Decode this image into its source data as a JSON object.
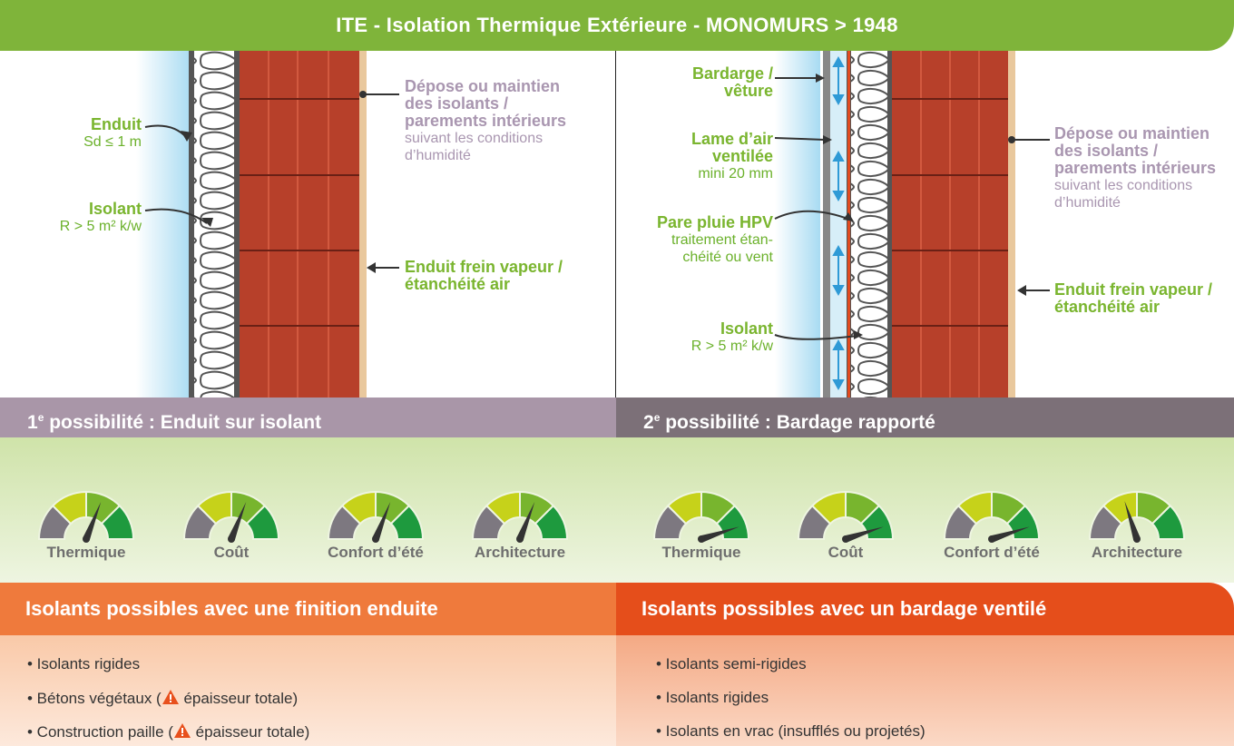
{
  "title": "ITE - Isolation Thermique Extérieure - MONOMURS > 1948",
  "left": {
    "enduit_title": "Enduit",
    "enduit_sub": "Sd ≤ 1 m",
    "isolant_title": "Isolant",
    "isolant_sub": "R > 5 m² k/w",
    "depose_l1": "Dépose ou maintien",
    "depose_l2": "des isolants /",
    "depose_l3": "parements intérieurs",
    "depose_l4": "suivant les conditions",
    "depose_l5": "d’humidité",
    "frein_l1": "Enduit frein vapeur /",
    "frein_l2": "étanchéité air"
  },
  "right": {
    "bardage_l1": "Bardarge /",
    "bardage_l2": "vêture",
    "lame_l1": "Lame d’air",
    "lame_l2": "ventilée",
    "lame_l3": "mini 20 mm",
    "pare_l1": "Pare pluie HPV",
    "pare_l2": "traitement étan-",
    "pare_l3": "chéité ou vent",
    "isolant_title": "Isolant",
    "isolant_sub": "R > 5 m² k/w",
    "depose_l1": "Dépose ou maintien",
    "depose_l2": "des isolants /",
    "depose_l3": "parements intérieurs",
    "depose_l4": "suivant les conditions",
    "depose_l5": "d’humidité",
    "frein_l1": "Enduit frein vapeur /",
    "frein_l2": "étanchéité air"
  },
  "possibilities": [
    {
      "num": "1",
      "sup": "e",
      "text": " possibilité : Enduit sur isolant",
      "color": "#a996a8"
    },
    {
      "num": "2",
      "sup": "e",
      "text": " possibilité : Bardage rapporté",
      "color": "#7c7078"
    }
  ],
  "gauges": {
    "colors": {
      "grey": "#7d7880",
      "yellow": "#c6d21a",
      "lightgreen": "#78b52e",
      "green": "#1e9a3e",
      "needle": "#333333"
    },
    "left": [
      {
        "label": "Thermique",
        "level": 0.62
      },
      {
        "label": "Coût",
        "level": 0.62
      },
      {
        "label": "Confort d’été",
        "level": 0.62
      },
      {
        "label": "Architecture",
        "level": 0.62
      }
    ],
    "right": [
      {
        "label": "Thermique",
        "level": 0.9
      },
      {
        "label": "Coût",
        "level": 0.9
      },
      {
        "label": "Confort d’été",
        "level": 0.9
      },
      {
        "label": "Architecture",
        "level": 0.4
      }
    ]
  },
  "insulation": {
    "left": {
      "title": "Isolants possibles avec une finition enduite",
      "items": [
        {
          "text": "• Isolants rigides",
          "warn": false,
          "suffix": ""
        },
        {
          "text": "• Bétons végétaux (",
          "warn": true,
          "suffix": " épaisseur totale)"
        },
        {
          "text": "• Construction paille (",
          "warn": true,
          "suffix": " épaisseur totale)"
        }
      ]
    },
    "right": {
      "title": "Isolants possibles avec un bardage ventilé",
      "items": [
        {
          "text": "• Isolants semi-rigides",
          "warn": false,
          "suffix": ""
        },
        {
          "text": "• Isolants rigides",
          "warn": false,
          "suffix": ""
        },
        {
          "text": "• Isolants en vrac (insufflés ou projetés)",
          "warn": false,
          "suffix": ""
        }
      ]
    }
  }
}
